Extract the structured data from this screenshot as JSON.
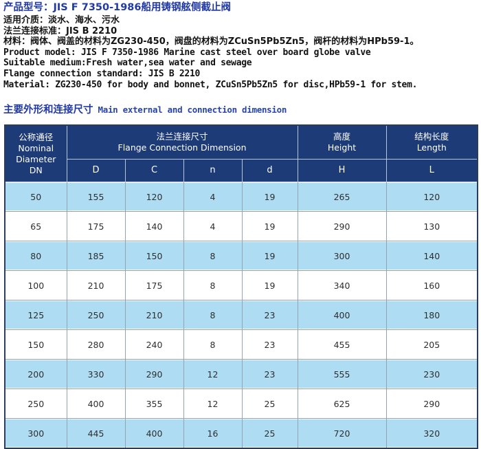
{
  "colors": {
    "accent_blue": "#2139a3",
    "header_navy": "#1d3b76",
    "stripe_blue": "#aedcf3"
  },
  "info": {
    "product_model_cn": "产品型号：JIS F 7350-1986船用铸钢舷侧截止阀",
    "medium_cn": "适用介质：淡水、海水、污水",
    "flange_standard_cn": "法兰连接标准：JIS B 2210",
    "material_cn": "材料：阀体、阀盖的材料为ZG230-450，阀盘的材料为ZCuSn5Pb5Zn5，阀杆的材料为HPb59-1。",
    "product_model_en": "Product model: JIS F 7350-1986 Marine cast steel over board globe valve",
    "medium_en": "Suitable medium:Fresh water,sea water and sewage",
    "flange_standard_en": "Flange connection standard: JIS B 2210",
    "material_en": "Material: ZG230-450 for body and bonnet, ZCuSn5Pb5Zn5 for disc,HPb59-1 for stem."
  },
  "section_title": {
    "cn": "主要外形和连接尺寸",
    "en": "Main external and connection  dimension"
  },
  "table": {
    "header": {
      "dn": [
        "公称通径",
        "Nominal",
        "Diameter",
        "DN"
      ],
      "flange_group_cn": "法兰连接尺寸",
      "flange_group_en": "Flange Connection Dimension",
      "height_cn": "高度",
      "height_en": "Height",
      "length_cn": "结构长度",
      "length_en": "Length",
      "sub_columns": [
        "D",
        "C",
        "n",
        "d",
        "H",
        "L"
      ]
    },
    "rows": [
      [
        50,
        155,
        120,
        4,
        19,
        265,
        120
      ],
      [
        65,
        175,
        140,
        4,
        19,
        290,
        130
      ],
      [
        80,
        185,
        150,
        8,
        19,
        300,
        140
      ],
      [
        100,
        210,
        175,
        8,
        19,
        340,
        160
      ],
      [
        125,
        250,
        210,
        8,
        23,
        400,
        180
      ],
      [
        150,
        280,
        240,
        8,
        23,
        455,
        205
      ],
      [
        200,
        330,
        290,
        12,
        23,
        555,
        230
      ],
      [
        250,
        400,
        355,
        12,
        25,
        625,
        290
      ],
      [
        300,
        445,
        400,
        16,
        25,
        720,
        320
      ]
    ]
  }
}
